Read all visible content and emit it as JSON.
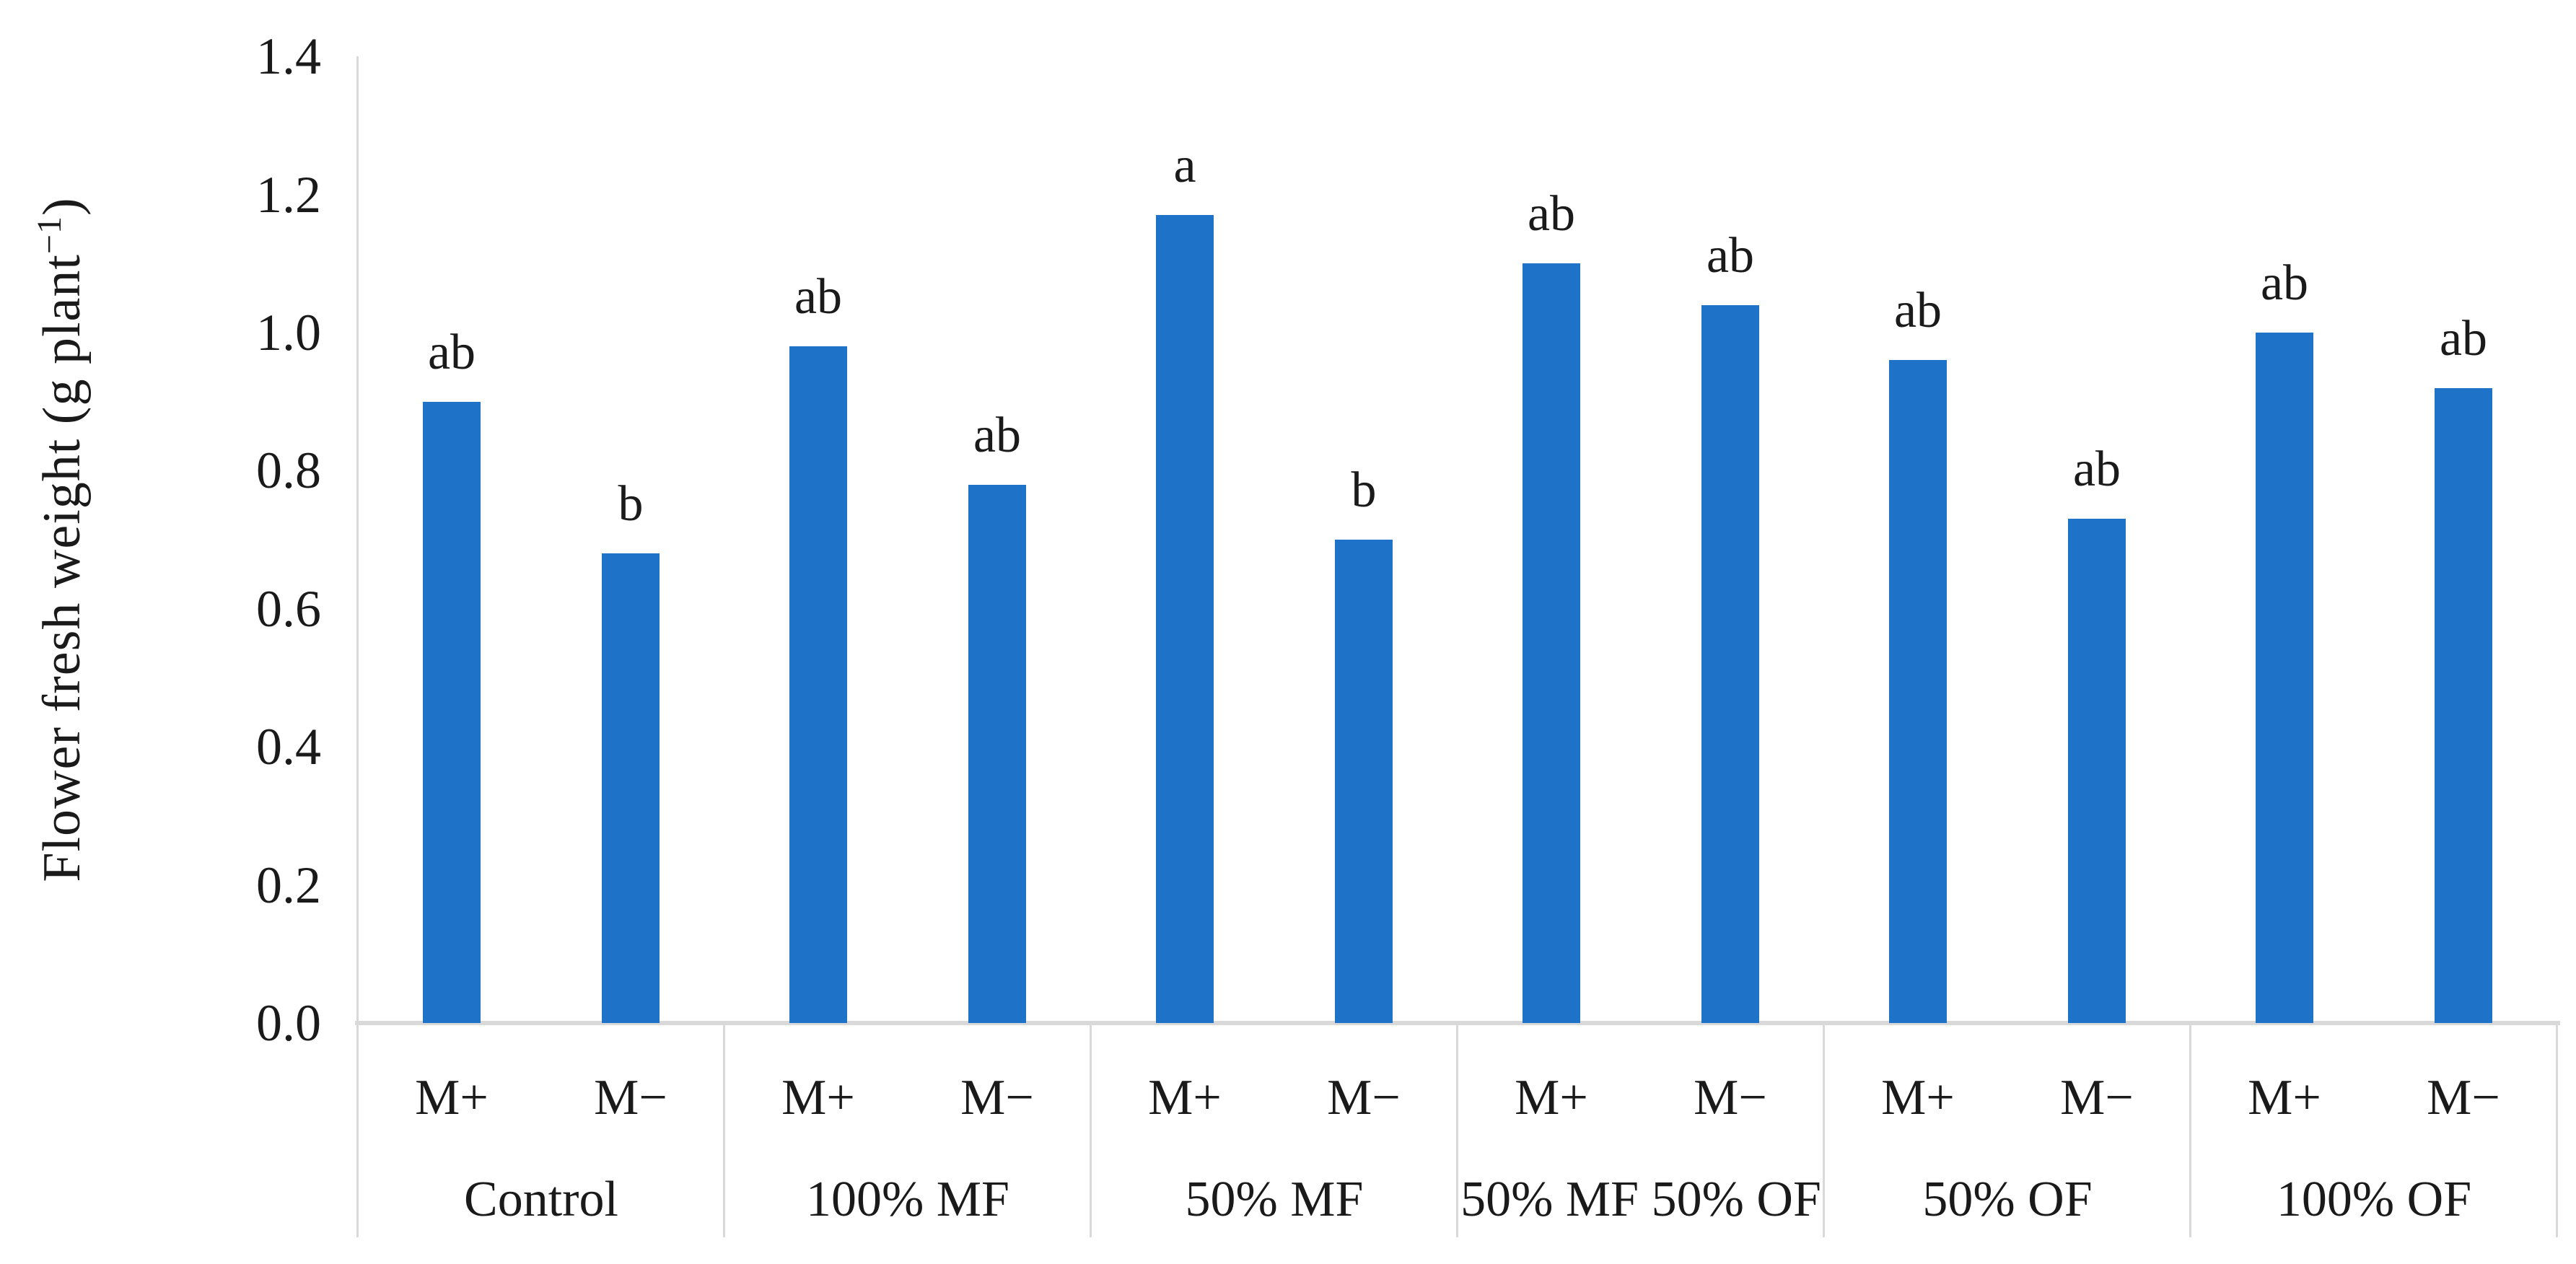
{
  "chart_data": {
    "type": "bar",
    "title": "",
    "ylabel": "Flower fresh weight (g plant−1)",
    "ylabel_parts": {
      "main": "Flower fresh weight (g plant",
      "sup": "−1",
      "close": ")"
    },
    "xlabel": "",
    "ylim": [
      0,
      1.4
    ],
    "ytick_labels": [
      "0.0",
      "0.2",
      "0.4",
      "0.6",
      "0.8",
      "1.0",
      "1.2",
      "1.4"
    ],
    "grid": "off",
    "legend_position": "none",
    "categories": [
      "Control",
      "100% MF",
      "50% MF",
      "50% MF 50% OF",
      "50% OF",
      "100% OF"
    ],
    "sub_categories": [
      "M+",
      "M−"
    ],
    "series": [
      {
        "name": "M+",
        "values": [
          0.9,
          0.98,
          1.17,
          1.1,
          0.96,
          1.0
        ],
        "sig_letters": [
          "ab",
          "ab",
          "a",
          "ab",
          "ab",
          "ab"
        ]
      },
      {
        "name": "M−",
        "values": [
          0.68,
          0.78,
          0.7,
          1.04,
          0.73,
          0.92
        ],
        "sig_letters": [
          "b",
          "ab",
          "b",
          "ab",
          "ab",
          "ab"
        ]
      }
    ],
    "colors": {
      "bar": "#1E73C8",
      "axis_line": "#D9D9D9",
      "text": "#1A1A1A",
      "background": "#FFFFFF"
    }
  }
}
